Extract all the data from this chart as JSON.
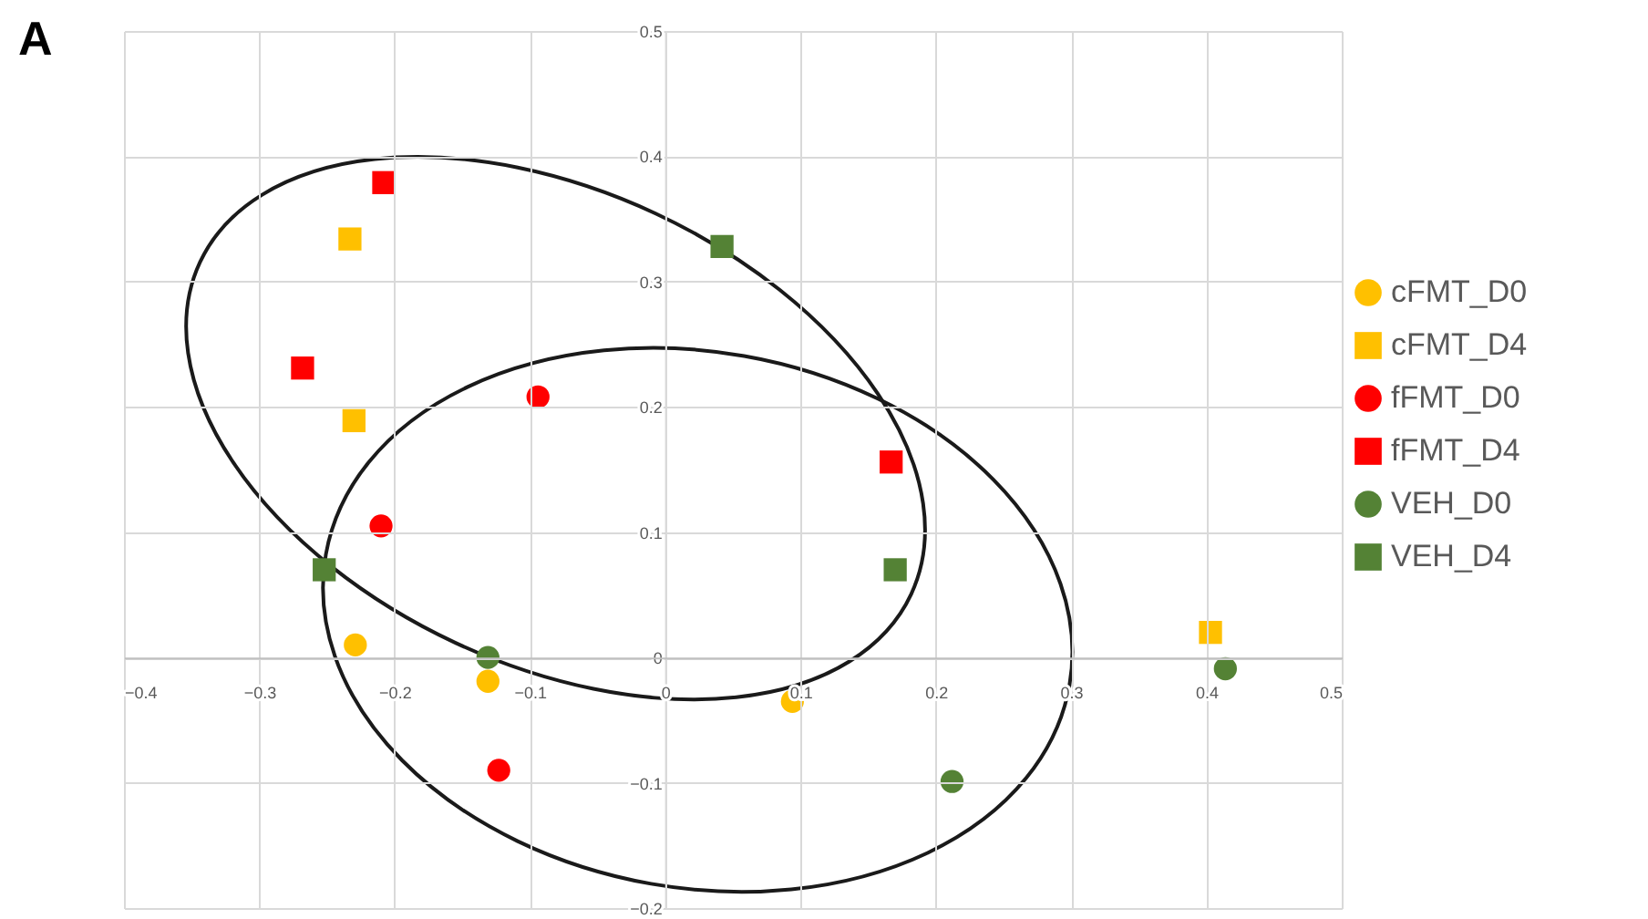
{
  "chart_data": {
    "type": "scatter",
    "title": "A",
    "xlim": [
      -0.4,
      0.5
    ],
    "xticks": [
      -0.4,
      -0.3,
      -0.2,
      -0.1,
      0,
      0.1,
      0.2,
      0.3,
      0.4,
      0.5
    ],
    "ylim": [
      -0.2,
      0.5
    ],
    "yticks": [
      -0.2,
      -0.1,
      0,
      0.1,
      0.2,
      0.3,
      0.4,
      0.5
    ],
    "grid": true,
    "legend": "right",
    "series": [
      {
        "name": "cFMT_D0",
        "color": "#ffc000",
        "marker": "circle",
        "x": [
          -0.229,
          -0.131,
          0.094
        ],
        "values": [
          0.01,
          -0.019,
          -0.035
        ]
      },
      {
        "name": "cFMT_D4",
        "color": "#ffc000",
        "marker": "square",
        "x": [
          -0.233,
          -0.23,
          0.403
        ],
        "values": [
          0.334,
          0.189,
          0.02
        ]
      },
      {
        "name": "fFMT_D0",
        "color": "#ff0000",
        "marker": "circle",
        "x": [
          -0.094,
          -0.21,
          -0.123
        ],
        "values": [
          0.208,
          0.105,
          -0.09
        ]
      },
      {
        "name": "fFMT_D4",
        "color": "#ff0000",
        "marker": "square",
        "x": [
          -0.208,
          -0.268,
          0.167
        ],
        "values": [
          0.379,
          0.231,
          0.156
        ]
      },
      {
        "name": "VEH_D0",
        "color": "#548235",
        "marker": "circle",
        "x": [
          -0.131,
          0.414,
          0.212
        ],
        "values": [
          0,
          -0.009,
          -0.099
        ]
      },
      {
        "name": "VEH_D4",
        "color": "#548235",
        "marker": "square",
        "x": [
          0.042,
          -0.252,
          0.17
        ],
        "values": [
          0.328,
          0.07,
          0.07
        ]
      }
    ]
  }
}
